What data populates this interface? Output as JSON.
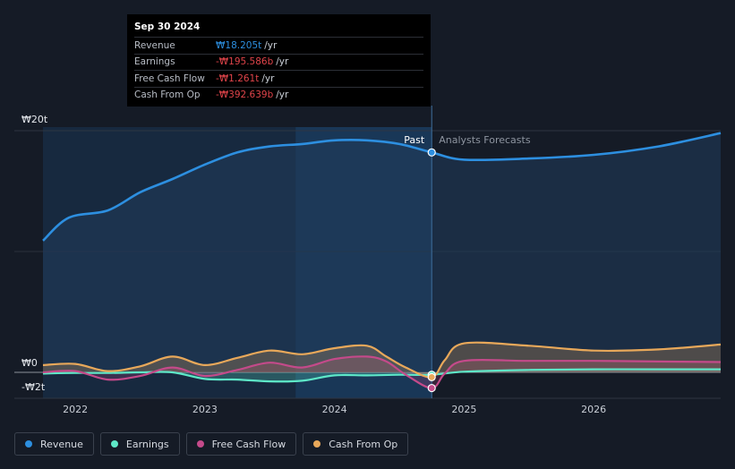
{
  "tooltip": {
    "date": "Sep 30 2024",
    "rows": [
      {
        "label": "Revenue",
        "value": "₩18.205t",
        "unit": "/yr",
        "color": "#2d8fe0"
      },
      {
        "label": "Earnings",
        "value": "-₩195.586b",
        "unit": "/yr",
        "color": "#e0444a"
      },
      {
        "label": "Free Cash Flow",
        "value": "-₩1.261t",
        "unit": "/yr",
        "color": "#e0444a"
      },
      {
        "label": "Cash From Op",
        "value": "-₩392.639b",
        "unit": "/yr",
        "color": "#e0444a"
      }
    ]
  },
  "annotations": {
    "past": "Past",
    "forecast": "Analysts Forecasts"
  },
  "legend": [
    {
      "label": "Revenue",
      "color": "#2d8fe0"
    },
    {
      "label": "Earnings",
      "color": "#5ee8c8"
    },
    {
      "label": "Free Cash Flow",
      "color": "#c44a8a"
    },
    {
      "label": "Cash From Op",
      "color": "#e8a85a"
    }
  ],
  "chart_data": {
    "type": "line",
    "y_tick_labels": [
      "₩20t",
      "₩0",
      "-₩2t"
    ],
    "y_ticks": [
      20,
      0,
      -2
    ],
    "ylim": [
      -2,
      20
    ],
    "xlim": [
      2021.75,
      2026.98
    ],
    "x_tick_labels": [
      "2022",
      "2023",
      "2024",
      "2025",
      "2026"
    ],
    "x_ticks": [
      2022,
      2023,
      2024,
      2025,
      2026
    ],
    "divider_x": 2024.75,
    "grid": true,
    "series": [
      {
        "name": "Revenue",
        "color": "#2d8fe0",
        "x": [
          2021.75,
          2021.95,
          2022.25,
          2022.5,
          2022.75,
          2023.0,
          2023.25,
          2023.5,
          2023.75,
          2024.0,
          2024.25,
          2024.5,
          2024.75,
          2025.0,
          2025.5,
          2026.0,
          2026.5,
          2026.98
        ],
        "y": [
          10.9,
          12.8,
          13.4,
          14.9,
          16.0,
          17.2,
          18.2,
          18.7,
          18.9,
          19.2,
          19.2,
          18.9,
          18.2,
          17.6,
          17.7,
          18.0,
          18.7,
          19.8
        ]
      },
      {
        "name": "Earnings",
        "color": "#5ee8c8",
        "x": [
          2021.75,
          2022.0,
          2022.25,
          2022.5,
          2022.75,
          2023.0,
          2023.25,
          2023.5,
          2023.75,
          2024.0,
          2024.25,
          2024.5,
          2024.75,
          2025.0,
          2025.5,
          2026.0,
          2026.5,
          2026.98
        ],
        "y": [
          -0.1,
          -0.05,
          -0.05,
          0.0,
          0.0,
          -0.55,
          -0.6,
          -0.75,
          -0.7,
          -0.25,
          -0.25,
          -0.2,
          -0.2,
          0.05,
          0.2,
          0.25,
          0.25,
          0.25
        ]
      },
      {
        "name": "Free Cash Flow",
        "color": "#c44a8a",
        "x": [
          2021.75,
          2022.0,
          2022.25,
          2022.5,
          2022.75,
          2023.0,
          2023.25,
          2023.5,
          2023.75,
          2024.0,
          2024.25,
          2024.4,
          2024.55,
          2024.75,
          2024.85,
          2025.0,
          2025.5,
          2026.0,
          2026.5,
          2026.98
        ],
        "y": [
          0.0,
          0.1,
          -0.6,
          -0.3,
          0.4,
          -0.3,
          0.2,
          0.8,
          0.4,
          1.1,
          1.3,
          0.9,
          -0.2,
          -1.3,
          -0.1,
          0.95,
          0.95,
          0.95,
          0.9,
          0.85
        ]
      },
      {
        "name": "Cash From Op",
        "color": "#e8a85a",
        "x": [
          2021.75,
          2022.0,
          2022.25,
          2022.5,
          2022.75,
          2023.0,
          2023.25,
          2023.5,
          2023.75,
          2024.0,
          2024.25,
          2024.4,
          2024.55,
          2024.75,
          2024.85,
          2025.0,
          2025.5,
          2026.0,
          2026.5,
          2026.98
        ],
        "y": [
          0.6,
          0.7,
          0.1,
          0.5,
          1.3,
          0.6,
          1.2,
          1.8,
          1.5,
          2.0,
          2.2,
          1.3,
          0.4,
          -0.4,
          1.0,
          2.4,
          2.2,
          1.8,
          1.9,
          2.3
        ]
      }
    ]
  }
}
